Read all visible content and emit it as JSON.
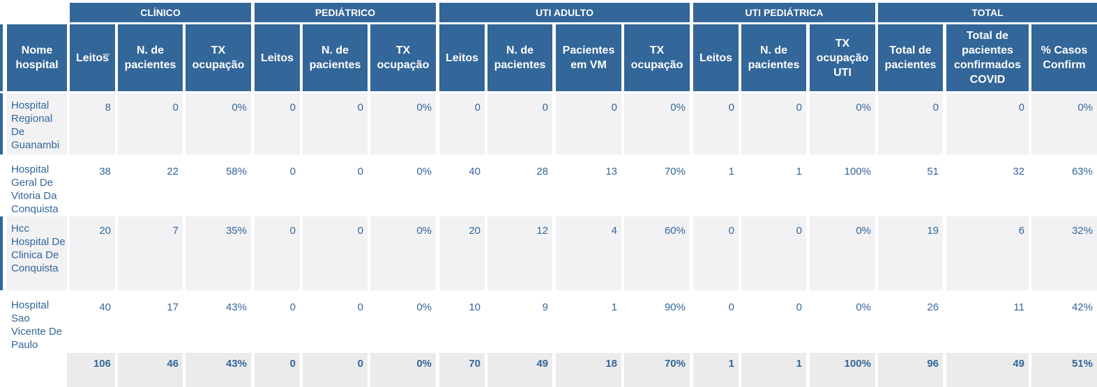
{
  "colors": {
    "header_bg": "#336699",
    "header_text": "#ffffff",
    "body_text": "#336699",
    "stripe": "#f2f2f4",
    "total_bg": "#ebebeb"
  },
  "groups": [
    "CLÍNICO",
    "PEDIÁTRICO",
    "UTI ADULTO",
    "UTI PEDIÁTRICA",
    "TOTAL"
  ],
  "columns": [
    "Nome hospital",
    "Leitos",
    "N. de pacientes",
    "TX ocupação",
    "Leitos",
    "N. de pacientes",
    "TX ocupação",
    "Leitos",
    "N. de pacientes",
    "Pacientes em VM",
    "TX ocupação",
    "Leitos",
    "N. de pacientes",
    "TX ocupação UTI",
    "Total de pacientes",
    "Total de pacientes confirmados COVID",
    "% Casos Confirm"
  ],
  "sort_icon": "sort-descending-icon",
  "rows": [
    {
      "name": "Hospital Regional De Guanambi",
      "values": [
        "8",
        "0",
        "0%",
        "0",
        "0",
        "0%",
        "0",
        "0",
        "0",
        "0%",
        "0",
        "0",
        "0%",
        "0",
        "0",
        "0%"
      ]
    },
    {
      "name": "Hospital Geral De Vitoria Da Conquista",
      "values": [
        "38",
        "22",
        "58%",
        "0",
        "0",
        "0%",
        "40",
        "28",
        "13",
        "70%",
        "1",
        "1",
        "100%",
        "51",
        "32",
        "63%"
      ]
    },
    {
      "name": "Hcc Hospital De Clinica De Conquista",
      "values": [
        "20",
        "7",
        "35%",
        "0",
        "0",
        "0%",
        "20",
        "12",
        "4",
        "60%",
        "0",
        "0",
        "0%",
        "19",
        "6",
        "32%"
      ]
    },
    {
      "name": "Hospital Sao Vicente De Paulo",
      "values": [
        "40",
        "17",
        "43%",
        "0",
        "0",
        "0%",
        "10",
        "9",
        "1",
        "90%",
        "0",
        "0",
        "0%",
        "26",
        "11",
        "42%"
      ]
    }
  ],
  "totals": [
    "106",
    "46",
    "43%",
    "0",
    "0",
    "0%",
    "70",
    "49",
    "18",
    "70%",
    "1",
    "1",
    "100%",
    "96",
    "49",
    "51%"
  ]
}
